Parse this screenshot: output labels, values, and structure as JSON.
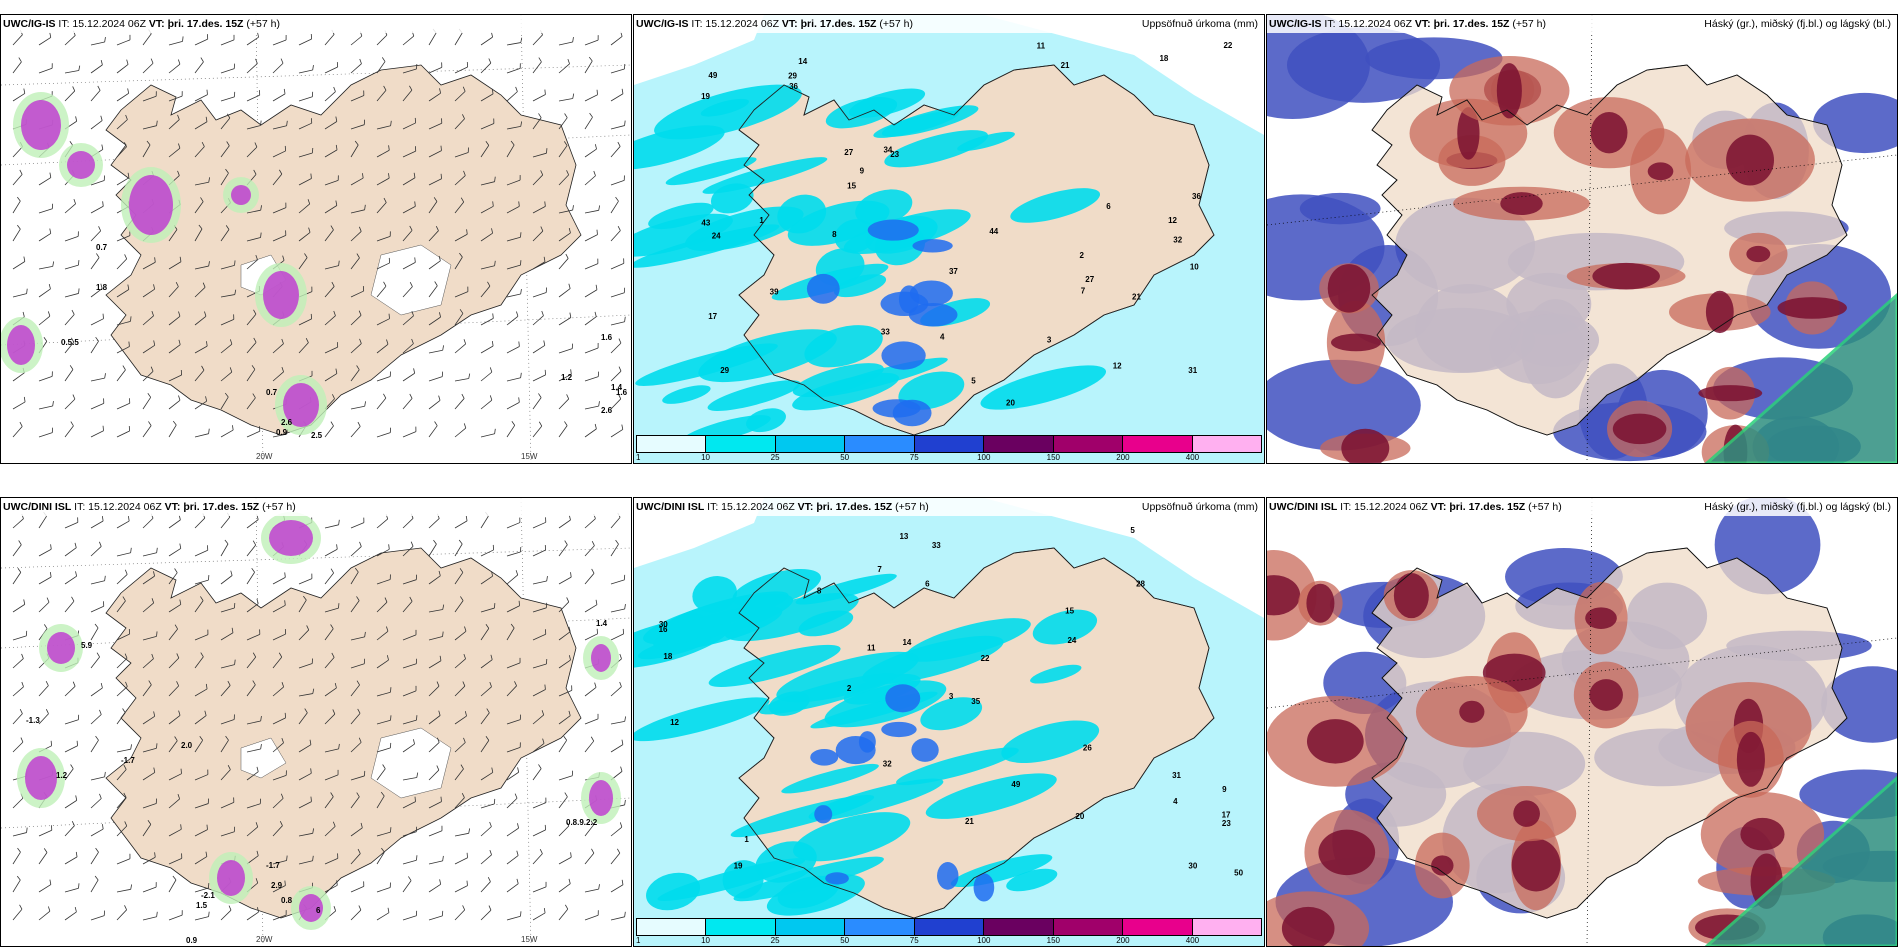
{
  "panels": [
    {
      "id": "p1",
      "model": "UWC/IG-IS",
      "it": "IT: 15.12.2024 06Z",
      "vt_label": "VT:",
      "vt": "þri. 17.des. 15Z",
      "lead": "(+57 h)",
      "right_title": "",
      "kind": "wind",
      "labels": [
        "0.7",
        "1.8",
        "0.5.5",
        "0.7",
        "2.6",
        "0.9",
        "2.5",
        "1.2",
        "1.4",
        "1.6",
        "1.6",
        "2.6"
      ],
      "lon_labels": [
        "20W",
        "15W"
      ]
    },
    {
      "id": "p2",
      "model": "UWC/IG-IS",
      "it": "IT: 15.12.2024 06Z",
      "vt_label": "VT:",
      "vt": "þri. 17.des. 15Z",
      "lead": "(+57 h)",
      "right_title": "Uppsöfnuð úrkoma (mm)",
      "kind": "precip",
      "labels": [
        "2",
        "32",
        "29",
        "14",
        "23",
        "12",
        "17",
        "21",
        "27",
        "20",
        "19",
        "43",
        "49",
        "31",
        "33",
        "36",
        "37",
        "44",
        "34",
        "39",
        "22",
        "18",
        "15",
        "10",
        "11",
        "29",
        "27",
        "24",
        "36",
        "6",
        "5",
        "3",
        "9",
        "8",
        "12",
        "21",
        "7",
        "1",
        "4"
      ]
    },
    {
      "id": "p3",
      "model": "UWC/IG-IS",
      "it": "IT: 15.12.2024 06Z",
      "vt_label": "VT:",
      "vt": "þri. 17.des. 15Z",
      "lead": "(+57 h)",
      "right_title": "Háský (gr.), miðský (fj.bl.) og lágský (bl.)",
      "kind": "cloud"
    },
    {
      "id": "p4",
      "model": "UWC/DINI ISL",
      "it": "IT: 15.12.2024 06Z",
      "vt_label": "VT:",
      "vt": "þri. 17.des. 15Z",
      "lead": "(+57 h)",
      "right_title": "",
      "kind": "wind",
      "labels": [
        "5.9",
        "-1.3",
        "-1.7",
        "1.2",
        "2.0",
        "-1.7",
        "2.9",
        "-2.1",
        "1.5",
        "0.8",
        "0.9",
        "1.4",
        "0.8.9.2.2",
        "6"
      ],
      "lon_labels": [
        "20W",
        "15W"
      ]
    },
    {
      "id": "p5",
      "model": "UWC/DINI ISL",
      "it": "IT: 15.12.2024 06Z",
      "vt_label": "VT:",
      "vt": "þri. 17.des. 15Z",
      "lead": "(+57 h)",
      "right_title": "Uppsöfnuð úrkoma (mm)",
      "kind": "precip",
      "labels": [
        "8",
        "30",
        "18",
        "31",
        "26",
        "35",
        "33",
        "50",
        "49",
        "32",
        "30",
        "22",
        "17",
        "19",
        "20",
        "21",
        "15",
        "14",
        "13",
        "12",
        "16",
        "23",
        "6",
        "5",
        "3",
        "2",
        "1",
        "11",
        "9",
        "7",
        "4",
        "24",
        "28"
      ]
    },
    {
      "id": "p6",
      "model": "UWC/DINI ISL",
      "it": "IT: 15.12.2024 06Z",
      "vt_label": "VT:",
      "vt": "þri. 17.des. 15Z",
      "lead": "(+57 h)",
      "right_title": "Háský (gr.), miðský (fj.bl.) og lágský (bl.)",
      "kind": "cloud"
    }
  ],
  "colorbar": {
    "ticks": [
      "1",
      "10",
      "25",
      "50",
      "75",
      "100",
      "150",
      "200",
      "400"
    ],
    "colors": [
      "#e6fcff",
      "#00e8f0",
      "#00c8f0",
      "#2a8cff",
      "#2040d0",
      "#6a0060",
      "#a0006a",
      "#e8008c",
      "#ffb0f0"
    ]
  },
  "colors": {
    "land": "#f0dcc8",
    "sea_wind": "#ffffff",
    "precip_light": "#b8f4fc",
    "precip_mid": "#00dcec",
    "precip_heavy": "#1e6cf0",
    "cloud_high": "#c86a5a",
    "cloud_mid": "#7a1030",
    "cloud_low": "#4050c0",
    "front": "#2e8f80",
    "magenta": "#c040d0"
  }
}
